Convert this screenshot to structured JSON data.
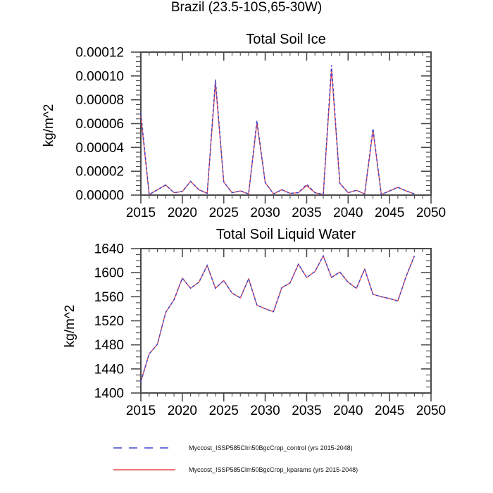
{
  "main": {
    "title": "Brazil (23.5-10S,65-30W)"
  },
  "legend": {
    "items": [
      {
        "label": "Myccost_ISSP585Clm50BgcCrop_control (yrs 2015-2048)",
        "color": "#4444cc",
        "style": "dashed"
      },
      {
        "label": "Myccost_ISSP585Clm50BgcCrop_kparams (yrs 2015-2048)",
        "color": "#ee4444",
        "style": "solid"
      }
    ]
  },
  "chart_data": [
    {
      "type": "line",
      "title": "Total Soil Ice",
      "ylabel": "kg/m^2",
      "xlim": [
        2015,
        2050
      ],
      "ylim": [
        0,
        0.00012
      ],
      "xtick_major": 5,
      "xtick_minor": 1,
      "ytick_major": 2e-05,
      "ytick_minor": 4e-06,
      "xtick_labels": [
        "2015",
        "2020",
        "2025",
        "2030",
        "2035",
        "2040",
        "2045",
        "2050"
      ],
      "ytick_labels": [
        "0.00000",
        "0.00002",
        "0.00004",
        "0.00006",
        "0.00008",
        "0.00010",
        "0.00012"
      ],
      "grid": false,
      "x": [
        2015,
        2016,
        2017,
        2018,
        2019,
        2020,
        2021,
        2022,
        2023,
        2024,
        2025,
        2026,
        2027,
        2028,
        2029,
        2030,
        2031,
        2032,
        2033,
        2034,
        2035,
        2036,
        2037,
        2038,
        2039,
        2040,
        2041,
        2042,
        2043,
        2044,
        2045,
        2046,
        2047,
        2048
      ],
      "series": [
        {
          "name": "Myccost_ISSP585Clm50BgcCrop_control",
          "color": "#4444cc",
          "style": "dashed",
          "values": [
            6.9e-05,
            5e-07,
            4.5e-06,
            8.5e-06,
            2e-06,
            3e-06,
            1.15e-05,
            4.5e-06,
            1.5e-06,
            9.7e-05,
            1.1e-05,
            2e-06,
            3.5e-06,
            1e-06,
            6.25e-05,
            1.05e-05,
            1e-06,
            4.5e-06,
            1.5e-06,
            2e-06,
            9e-06,
            2e-06,
            5e-07,
            0.000109,
            1e-05,
            2e-06,
            4e-06,
            1e-06,
            5.6e-05,
            5e-07,
            3.5e-06,
            6.5e-06,
            3.5e-06,
            1e-06
          ]
        },
        {
          "name": "Myccost_ISSP585Clm50BgcCrop_kparams",
          "color": "#ee4444",
          "style": "solid",
          "values": [
            6.6e-05,
            5e-07,
            4.5e-06,
            8.5e-06,
            2e-06,
            3e-06,
            1.15e-05,
            4.5e-06,
            1.5e-06,
            9.4e-05,
            1.1e-05,
            2e-06,
            3.5e-06,
            1e-06,
            6.05e-05,
            1.05e-05,
            1e-06,
            4.5e-06,
            1.5e-06,
            2e-06,
            8e-06,
            2e-06,
            5e-07,
            0.000105,
            1e-05,
            2e-06,
            4e-06,
            1e-06,
            5.4e-05,
            5e-07,
            3.5e-06,
            6.5e-06,
            3.5e-06,
            1e-06
          ]
        }
      ]
    },
    {
      "type": "line",
      "title": "Total Soil Liquid Water",
      "ylabel": "kg/m^2",
      "xlim": [
        2015,
        2050
      ],
      "ylim": [
        1400,
        1640
      ],
      "xtick_major": 5,
      "xtick_minor": 1,
      "ytick_major": 40,
      "ytick_minor": 10,
      "xtick_labels": [
        "2015",
        "2020",
        "2025",
        "2030",
        "2035",
        "2040",
        "2045",
        "2050"
      ],
      "ytick_labels": [
        "1400",
        "1440",
        "1480",
        "1520",
        "1560",
        "1600",
        "1640"
      ],
      "grid": false,
      "x": [
        2015,
        2016,
        2017,
        2018,
        2019,
        2020,
        2021,
        2022,
        2023,
        2024,
        2025,
        2026,
        2027,
        2028,
        2029,
        2030,
        2031,
        2032,
        2033,
        2034,
        2035,
        2036,
        2037,
        2038,
        2039,
        2040,
        2041,
        2042,
        2043,
        2044,
        2045,
        2046,
        2047,
        2048
      ],
      "series": [
        {
          "name": "Myccost_ISSP585Clm50BgcCrop_control",
          "color": "#4444cc",
          "style": "dashed",
          "values": [
            1419,
            1465,
            1481,
            1534,
            1555,
            1591,
            1574,
            1584,
            1612,
            1574,
            1587,
            1566,
            1558,
            1590,
            1546,
            1540,
            1535,
            1575,
            1583,
            1614,
            1592,
            1602,
            1628,
            1592,
            1601,
            1584,
            1574,
            1606,
            1564,
            1560,
            1557,
            1553,
            1594,
            1628
          ]
        },
        {
          "name": "Myccost_ISSP585Clm50BgcCrop_kparams",
          "color": "#ee4444",
          "style": "solid",
          "values": [
            1419,
            1465,
            1481,
            1534,
            1555,
            1591,
            1574,
            1584,
            1612,
            1574,
            1587,
            1566,
            1558,
            1590,
            1546,
            1540,
            1535,
            1575,
            1583,
            1614,
            1592,
            1602,
            1628,
            1592,
            1601,
            1584,
            1574,
            1606,
            1564,
            1560,
            1557,
            1553,
            1594,
            1628
          ]
        }
      ]
    }
  ]
}
